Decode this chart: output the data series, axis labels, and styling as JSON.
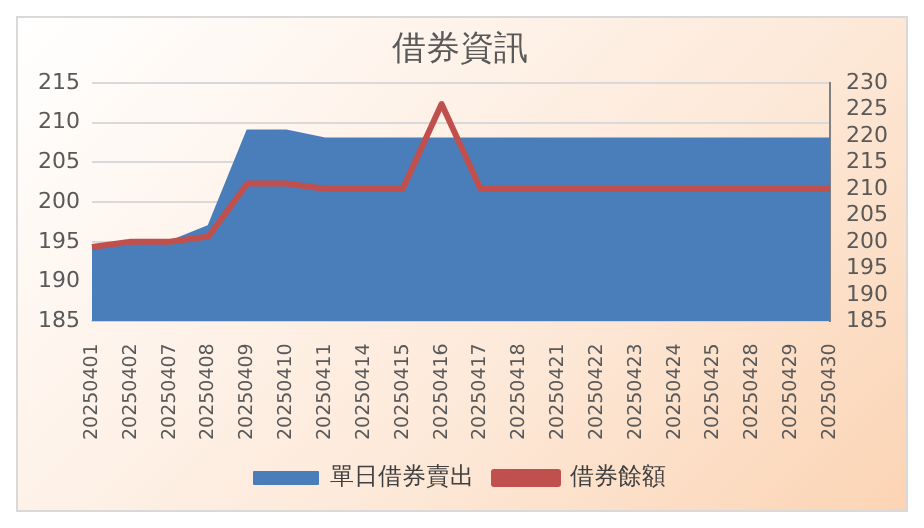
{
  "chart_data": {
    "type": "area",
    "title": "借券資訊",
    "categories": [
      "20250401",
      "20250402",
      "20250407",
      "20250408",
      "20250409",
      "20250410",
      "20250411",
      "20250414",
      "20250415",
      "20250416",
      "20250417",
      "20250418",
      "20250421",
      "20250422",
      "20250423",
      "20250424",
      "20250425",
      "20250428",
      "20250429",
      "20250430"
    ],
    "series": [
      {
        "name": "單日借券賣出",
        "color": "#4a7ebb",
        "values": [
          194.5,
          195,
          195,
          197,
          209,
          209,
          208,
          208,
          208,
          208,
          208,
          208,
          208,
          208,
          208,
          208,
          208,
          208,
          208,
          208
        ]
      },
      {
        "name": "借券餘額",
        "type": "line",
        "axis": "y2",
        "color": "#c0504d",
        "values": [
          199,
          200,
          200,
          201,
          211,
          211,
          210,
          210,
          210,
          226,
          210,
          210,
          210,
          210,
          210,
          210,
          210,
          210,
          210,
          210
        ]
      }
    ],
    "ylim": [
      185,
      215
    ],
    "yticks": [
      185,
      190,
      195,
      200,
      205,
      210,
      215
    ],
    "y2lim": [
      185,
      230
    ],
    "y2ticks": [
      185,
      190,
      195,
      200,
      205,
      210,
      215,
      220,
      225,
      230
    ],
    "grid": "y",
    "legend": "bottom",
    "marker": "none"
  }
}
